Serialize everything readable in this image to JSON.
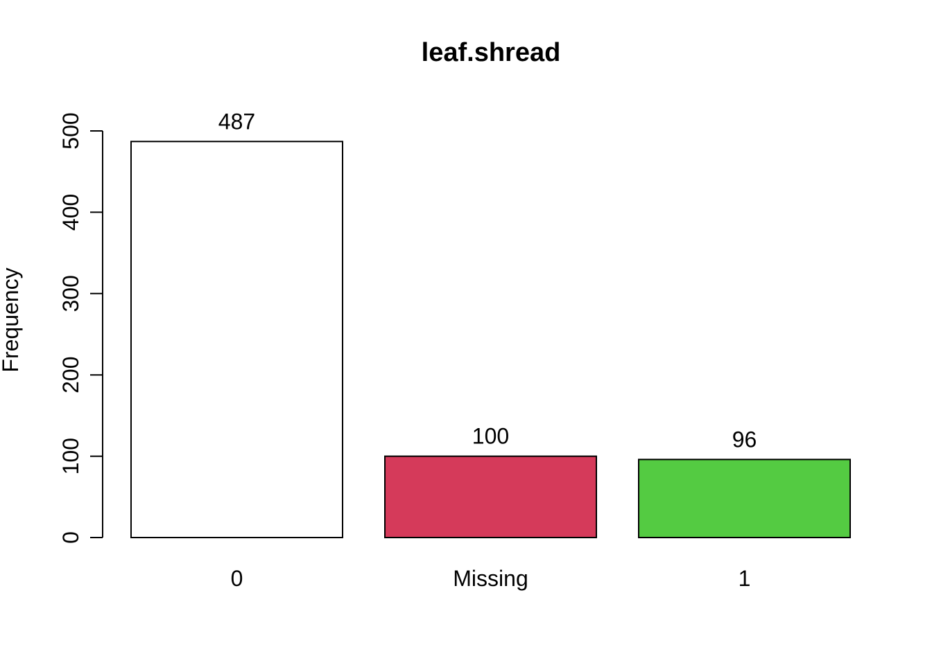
{
  "chart_data": {
    "type": "bar",
    "title": "leaf.shread",
    "xlabel": "",
    "ylabel": "Frequency",
    "categories": [
      "0",
      "Missing",
      "1"
    ],
    "values": [
      487,
      100,
      96
    ],
    "bar_colors": [
      "#FFFFFF",
      "#D53A5A",
      "#54CB42"
    ],
    "data_labels": [
      "487",
      "100",
      "96"
    ],
    "ylim": [
      0,
      500
    ],
    "yticks": [
      0,
      100,
      200,
      300,
      400,
      500
    ],
    "grid": false,
    "legend": "none"
  }
}
